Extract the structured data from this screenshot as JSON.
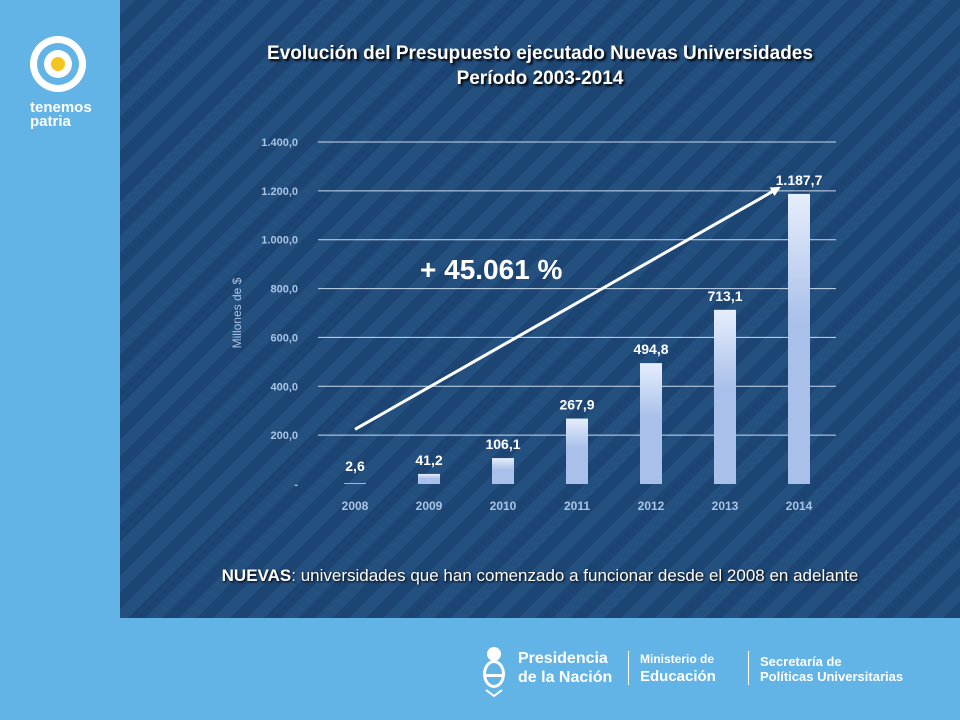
{
  "brand": {
    "line1": "tenemos",
    "line2": "patria"
  },
  "slide": {
    "title_line1": "Evolución del Presupuesto ejecutado Nuevas Universidades",
    "title_line2": "Período 2003-2014",
    "footnote_bold": "NUEVAS",
    "footnote_rest": ": universidades que han comenzado a funcionar desde el 2008 en adelante"
  },
  "chart_data": {
    "type": "bar",
    "categories": [
      "2008",
      "2009",
      "2010",
      "2011",
      "2012",
      "2013",
      "2014"
    ],
    "values": [
      2.6,
      41.2,
      106.1,
      267.9,
      494.8,
      713.1,
      1187.7
    ],
    "data_labels": [
      "2,6",
      "41,2",
      "106,1",
      "267,9",
      "494,8",
      "713,1",
      "1.187,7"
    ],
    "ylabel": "Millones de $",
    "ylim": [
      0,
      1400
    ],
    "yticks": [
      0,
      200,
      400,
      600,
      800,
      1000,
      1200,
      1400
    ],
    "ytick_labels": [
      "-",
      "200,0",
      "400,0",
      "600,0",
      "800,0",
      "1.000,0",
      "1.200,0",
      "1.400,0"
    ],
    "grid": true,
    "annotation": "+ 45.061 %",
    "bar_color": "#a9c0ea",
    "bar_color_light": "#e6eefc"
  },
  "footer": {
    "presidencia_line1": "Presidencia",
    "presidencia_line2": "de la Nación",
    "ministerio_line1": "Ministerio de",
    "ministerio_line2": "Educación",
    "secretaria_line1": "Secretaría de",
    "secretaria_line2": "Políticas Universitarias"
  },
  "colors": {
    "main_bg": "#1f4a78",
    "sidebar_bg": "#62b3e6",
    "axis_text": "#a9c4e4"
  }
}
